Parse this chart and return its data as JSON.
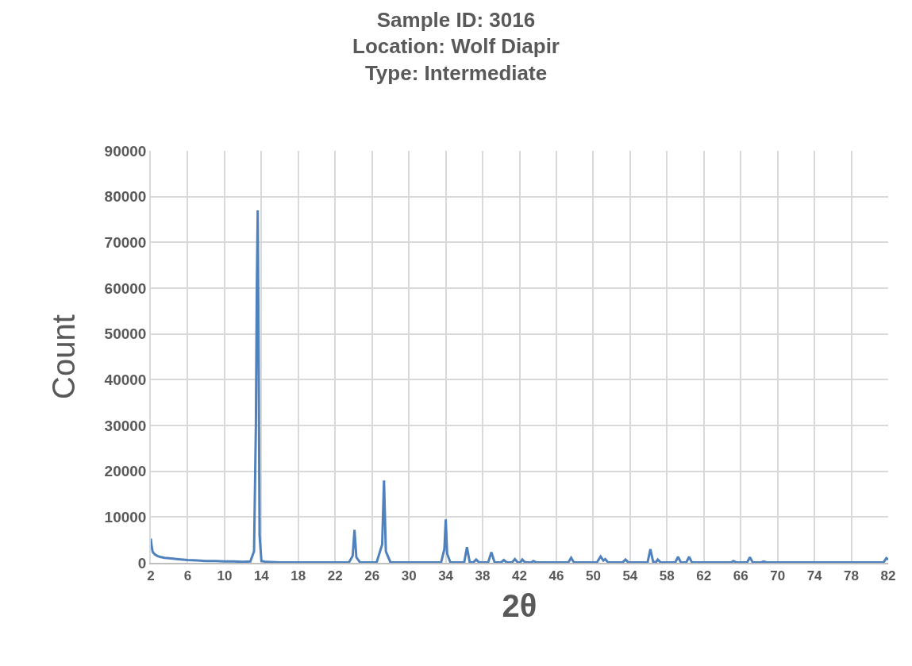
{
  "chart_data": {
    "type": "line",
    "title": "Sample ID: 3016\nLocation: Wolf Diapir\nType: Intermediate",
    "xlabel": "2θ",
    "ylabel": "Count",
    "xlim": [
      2,
      82
    ],
    "xticks": [
      2,
      6,
      10,
      14,
      18,
      22,
      26,
      30,
      34,
      38,
      42,
      46,
      50,
      54,
      58,
      62,
      66,
      70,
      74,
      78,
      82
    ],
    "ylim": [
      0,
      90000
    ],
    "yticks": [
      0,
      10000,
      20000,
      30000,
      40000,
      50000,
      60000,
      70000,
      80000,
      90000
    ],
    "grid": true,
    "marker": "none",
    "line_style": "solid",
    "x": [
      2,
      2.1,
      2.2,
      2.4,
      2.7,
      3,
      3.5,
      4,
      5,
      6,
      7,
      8,
      9,
      10,
      11,
      12,
      12.8,
      13.2,
      13.4,
      13.5,
      13.6,
      13.7,
      13.8,
      14,
      14.5,
      16,
      18,
      20,
      22,
      23.5,
      23.9,
      24.1,
      24.3,
      24.7,
      26.5,
      27.1,
      27.3,
      27.5,
      28,
      30,
      32,
      33.5,
      33.85,
      34,
      34.15,
      34.5,
      36,
      36.3,
      36.6,
      37,
      37.3,
      37.6,
      38.6,
      38.95,
      39.3,
      40,
      40.3,
      40.6,
      41.2,
      41.5,
      41.8,
      42.1,
      42.3,
      42.6,
      43.3,
      43.5,
      43.8,
      47.3,
      47.6,
      47.9,
      50.4,
      50.8,
      51.1,
      51.3,
      51.6,
      53.2,
      53.5,
      53.8,
      55.9,
      56.2,
      56.5,
      56.8,
      57,
      57.3,
      58.9,
      59.2,
      59.5,
      60.1,
      60.4,
      60.7,
      65,
      65.2,
      65.5,
      66.7,
      67,
      67.3,
      68.2,
      68.5,
      68.8,
      75,
      77,
      81.5,
      81.8,
      82
    ],
    "values": [
      5300,
      3500,
      2400,
      1900,
      1500,
      1300,
      1100,
      1000,
      800,
      600,
      500,
      400,
      400,
      300,
      300,
      200,
      300,
      2500,
      30000,
      60000,
      77000,
      45000,
      6000,
      400,
      200,
      100,
      100,
      100,
      100,
      100,
      1500,
      7200,
      1200,
      100,
      100,
      4000,
      18000,
      2500,
      100,
      100,
      100,
      100,
      3000,
      9500,
      2000,
      100,
      100,
      3400,
      100,
      100,
      700,
      100,
      100,
      2300,
      100,
      100,
      600,
      100,
      100,
      800,
      100,
      100,
      700,
      100,
      100,
      400,
      100,
      100,
      1100,
      100,
      100,
      1400,
      500,
      800,
      100,
      100,
      700,
      100,
      100,
      3000,
      200,
      100,
      700,
      100,
      100,
      1300,
      100,
      100,
      1300,
      100,
      100,
      400,
      100,
      100,
      1200,
      100,
      100,
      300,
      100,
      100,
      100,
      100,
      1000,
      700
    ],
    "color": "#4f81bd"
  }
}
